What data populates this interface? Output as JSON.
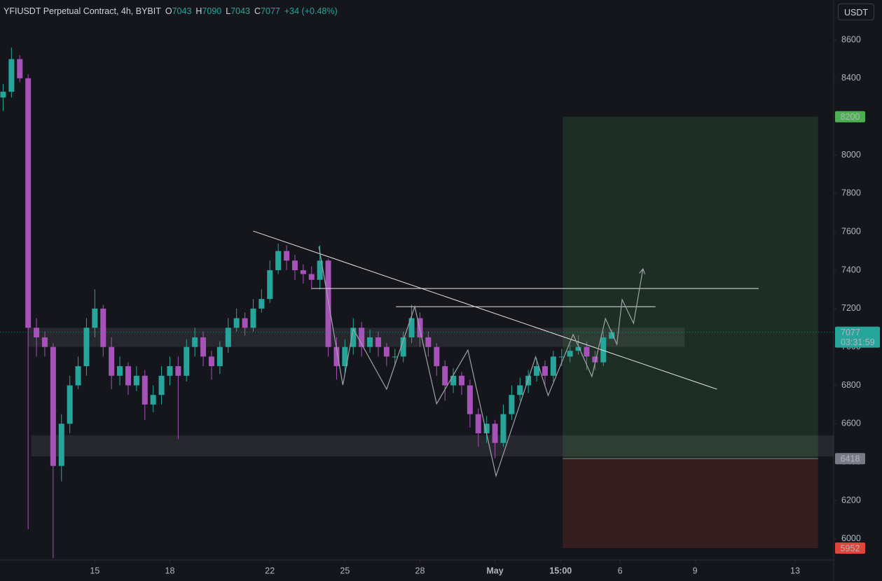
{
  "chart_data": {
    "type": "candlestick",
    "title": "YFIUSDT Perpetual Contract, 4h, BYBIT",
    "change": "+34 (+0.48%)",
    "unit": "USDT",
    "ohlc_keys": [
      "O",
      "H",
      "L",
      "C"
    ],
    "countdown": "03:31:59",
    "up_color": "#26a69a",
    "down_color": "#a652b8",
    "x": [
      272,
      280,
      288,
      296,
      304,
      312,
      320,
      328,
      336,
      344,
      352,
      360,
      368,
      376,
      384,
      392,
      400,
      408,
      416,
      424,
      432,
      440,
      448,
      456,
      464,
      472,
      480,
      488,
      496,
      504,
      512,
      520,
      528,
      536,
      544,
      552,
      560,
      568,
      576,
      584,
      592,
      600,
      608,
      616,
      624,
      632,
      640,
      648,
      656,
      664,
      672,
      680,
      688,
      696,
      704,
      712,
      720,
      728,
      736,
      744,
      752,
      760,
      768,
      776,
      784,
      792,
      800,
      808,
      816,
      824,
      832,
      840,
      848,
      856
    ],
    "open": [
      8300,
      8330,
      8500,
      8400,
      7100,
      7050,
      7000,
      6380,
      6600,
      6800,
      6900,
      7100,
      7200,
      7000,
      6850,
      6900,
      6800,
      6850,
      6700,
      6750,
      6850,
      6900,
      6850,
      7000,
      7050,
      6950,
      6900,
      7000,
      7100,
      7150,
      7100,
      7200,
      7250,
      7400,
      7500,
      7450,
      7400,
      7380,
      7350,
      7450,
      7000,
      6900,
      7000,
      7100,
      7000,
      7050,
      7000,
      6950,
      6950,
      7050,
      7150,
      7050,
      7000,
      6900,
      6800,
      6850,
      6800,
      6650,
      6550,
      6600,
      6500,
      6650,
      6750,
      6800,
      6850,
      6900,
      6850,
      6950,
      6950,
      6980,
      7000,
      6950,
      6920,
      7043
    ],
    "high": [
      8370,
      8560,
      8520,
      8420,
      7150,
      7080,
      7020,
      6650,
      6850,
      6950,
      7150,
      7300,
      7220,
      7050,
      6950,
      6920,
      6900,
      6880,
      6800,
      6900,
      6950,
      6950,
      7040,
      7100,
      7080,
      6980,
      7030,
      7150,
      7200,
      7180,
      7250,
      7300,
      7450,
      7540,
      7530,
      7480,
      7430,
      7420,
      7530,
      7460,
      7050,
      7040,
      7150,
      7130,
      7090,
      7080,
      7020,
      6990,
      7080,
      7220,
      7180,
      7080,
      7020,
      6930,
      6890,
      6870,
      6830,
      6680,
      6640,
      6620,
      6700,
      6800,
      6840,
      6880,
      6940,
      6930,
      6980,
      6990,
      7010,
      7060,
      7030,
      6980,
      7080,
      7090
    ],
    "low": [
      8230,
      8300,
      8380,
      6050,
      6950,
      6950,
      5900,
      6300,
      6550,
      6780,
      6850,
      7050,
      6950,
      6780,
      6800,
      6750,
      6770,
      6620,
      6660,
      6700,
      6800,
      6520,
      6820,
      6950,
      6900,
      6830,
      6860,
      6970,
      7080,
      7060,
      7080,
      7180,
      7230,
      7380,
      7400,
      7350,
      7330,
      7300,
      7300,
      6950,
      6830,
      6860,
      6960,
      6950,
      6970,
      6950,
      6900,
      6900,
      6920,
      7020,
      7000,
      6950,
      6850,
      6720,
      6760,
      6750,
      6580,
      6480,
      6500,
      6420,
      6480,
      6620,
      6720,
      6760,
      6820,
      6800,
      6820,
      6900,
      6920,
      6960,
      6880,
      6880,
      6900,
      7043
    ],
    "close": [
      8330,
      8500,
      8400,
      7100,
      7050,
      7000,
      6380,
      6600,
      6800,
      6900,
      7100,
      7200,
      7000,
      6850,
      6900,
      6800,
      6850,
      6700,
      6750,
      6850,
      6900,
      6850,
      7000,
      7050,
      6950,
      6900,
      7000,
      7100,
      7150,
      7100,
      7200,
      7250,
      7400,
      7500,
      7450,
      7400,
      7380,
      7350,
      7450,
      7000,
      6900,
      7000,
      7100,
      7000,
      7050,
      7000,
      6950,
      6950,
      7050,
      7150,
      7050,
      7000,
      6900,
      6800,
      6850,
      6800,
      6650,
      6550,
      6600,
      6500,
      6650,
      6750,
      6800,
      6850,
      6900,
      6850,
      6950,
      6950,
      6980,
      7000,
      6950,
      6920,
      7050,
      7077
    ],
    "xlim": [
      269,
      1069
    ],
    "xticks": [
      {
        "value": 360,
        "label": "15"
      },
      {
        "value": 432,
        "label": "18"
      },
      {
        "value": 528,
        "label": "22"
      },
      {
        "value": 600,
        "label": "25"
      },
      {
        "value": 672,
        "label": "28"
      },
      {
        "value": 744,
        "label": "May"
      },
      {
        "value": 807,
        "label": "15:00"
      },
      {
        "value": 864,
        "label": "6"
      },
      {
        "value": 936,
        "label": "9"
      },
      {
        "value": 1032,
        "label": "13"
      }
    ],
    "ylim": [
      5890,
      8808
    ],
    "yticks": [
      6000,
      6200,
      6400,
      6600,
      6800,
      7000,
      7200,
      7400,
      7600,
      7800,
      8000,
      8200,
      8400,
      8600
    ],
    "grid": false,
    "position": {
      "x": [
        809,
        1054
      ],
      "target": 8200,
      "entry": 6418,
      "stop": 5952,
      "target_color": "#4caf50",
      "entry_color": "#787b86",
      "stop_color": "#e0453b"
    },
    "zones": [
      {
        "x": [
          296,
          926
        ],
        "y": [
          7000,
          7100
        ]
      },
      {
        "x": [
          299,
          1069
        ],
        "y": [
          6430,
          6540
        ]
      }
    ],
    "lines": [
      {
        "x": [
          512,
          957
        ],
        "y": [
          7604,
          6780
        ]
      },
      {
        "x": [
          568,
          997
        ],
        "y": [
          7305,
          7305
        ]
      },
      {
        "x": [
          649,
          898
        ],
        "y": [
          7210,
          7210
        ]
      }
    ],
    "projection": {
      "x": [
        575,
        598,
        608,
        640,
        667,
        688,
        718,
        745,
        783,
        795,
        819,
        837,
        850,
        861,
        866,
        877,
        886
      ],
      "y": [
        7524,
        6802,
        7094,
        6780,
        7210,
        6704,
        6984,
        6328,
        6948,
        6747,
        7065,
        6846,
        7148,
        7014,
        7247,
        7123,
        7407
      ]
    }
  }
}
